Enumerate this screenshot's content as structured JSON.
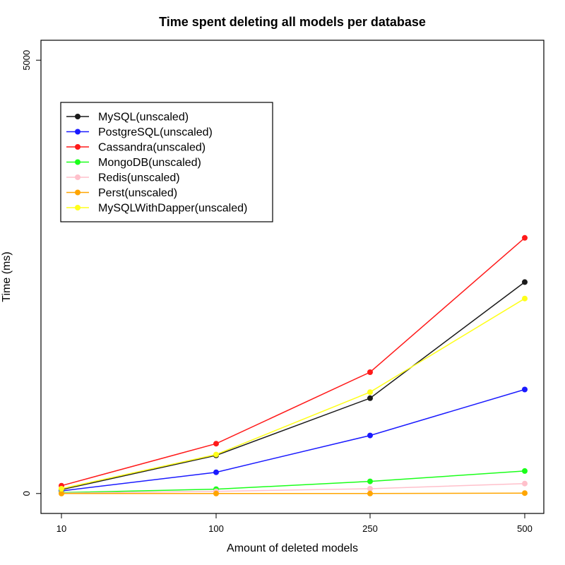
{
  "chart_data": {
    "type": "line",
    "title": "Time spent deleting all models per database",
    "xlabel": "Amount of deleted models",
    "ylabel": "Time (ms)",
    "categories": [
      "10",
      "100",
      "250",
      "500"
    ],
    "yticks": [
      "0",
      "5000"
    ],
    "ylim": [
      -230,
      5230
    ],
    "grid": false,
    "legend_position": "top-left",
    "series": [
      {
        "name": "MySQL(unscaled)",
        "color": "#1a1a1a",
        "values": [
          45,
          440,
          1100,
          2440
        ]
      },
      {
        "name": "PostgreSQL(unscaled)",
        "color": "#1a1aff",
        "values": [
          30,
          245,
          670,
          1200
        ]
      },
      {
        "name": "Cassandra(unscaled)",
        "color": "#ff1a1a",
        "values": [
          90,
          575,
          1400,
          2950
        ]
      },
      {
        "name": "MongoDB(unscaled)",
        "color": "#1aff1a",
        "values": [
          10,
          50,
          140,
          260
        ]
      },
      {
        "name": "Redis(unscaled)",
        "color": "#ffc0cb",
        "values": [
          5,
          25,
          55,
          115
        ]
      },
      {
        "name": "Perst(unscaled)",
        "color": "#ffa500",
        "values": [
          0,
          0,
          0,
          5
        ]
      },
      {
        "name": "MySQLWithDapper(unscaled)",
        "color": "#ffff1a",
        "values": [
          55,
          450,
          1170,
          2250
        ]
      }
    ]
  }
}
